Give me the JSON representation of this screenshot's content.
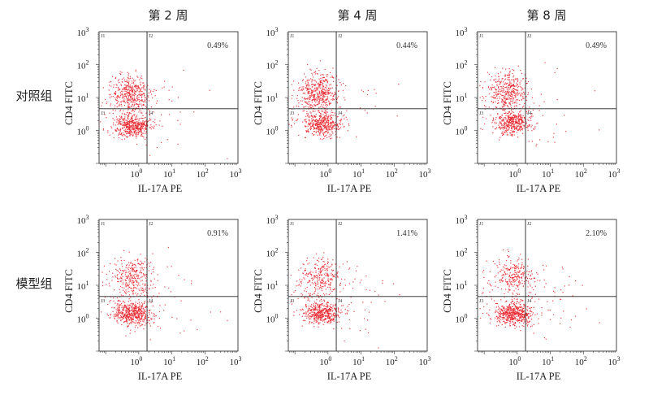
{
  "chart_data": {
    "type": "scatter",
    "xlabel": "IL-17A PE",
    "ylabel": "CD4 FITC",
    "x_scale": "log10",
    "y_scale": "log10",
    "xlim_log10": [
      -1.2,
      3
    ],
    "ylim_log10": [
      -1,
      3
    ],
    "x_ticks_log10": [
      0,
      1,
      2,
      3
    ],
    "y_ticks_log10": [
      0,
      1,
      2,
      3
    ],
    "tick_base": "10",
    "gate_log10": {
      "x": 0.25,
      "y": 0.66
    },
    "quadrant_labels": [
      "J1",
      "J2",
      "J3",
      "J4"
    ],
    "point_color": "#e8222a",
    "columns": [
      "第 2 周",
      "第 4 周",
      "第 8 周"
    ],
    "rows": [
      "对照组",
      "模型组"
    ],
    "panels": [
      {
        "row": 0,
        "col": 0,
        "q2_percent": "0.49%",
        "upper": {
          "cx": -0.25,
          "cy": 1.1,
          "n": 420
        },
        "lower": {
          "cx": -0.2,
          "cy": 0.15,
          "n": 480
        },
        "spread": 25
      },
      {
        "row": 0,
        "col": 1,
        "q2_percent": "0.44%",
        "upper": {
          "cx": -0.3,
          "cy": 1.15,
          "n": 460
        },
        "lower": {
          "cx": -0.2,
          "cy": 0.2,
          "n": 420
        },
        "spread": 22
      },
      {
        "row": 0,
        "col": 2,
        "q2_percent": "0.49%",
        "upper": {
          "cx": -0.3,
          "cy": 1.15,
          "n": 380
        },
        "lower": {
          "cx": -0.15,
          "cy": 0.25,
          "n": 420
        },
        "spread": 25
      },
      {
        "row": 1,
        "col": 0,
        "q2_percent": "0.91%",
        "upper": {
          "cx": -0.2,
          "cy": 1.25,
          "n": 300
        },
        "lower": {
          "cx": -0.2,
          "cy": 0.15,
          "n": 520
        },
        "spread": 40
      },
      {
        "row": 1,
        "col": 1,
        "q2_percent": "1.41%",
        "upper": {
          "cx": -0.25,
          "cy": 1.25,
          "n": 260
        },
        "lower": {
          "cx": -0.2,
          "cy": 0.15,
          "n": 460
        },
        "spread": 50
      },
      {
        "row": 1,
        "col": 2,
        "q2_percent": "2.10%",
        "upper": {
          "cx": -0.1,
          "cy": 1.25,
          "n": 260
        },
        "lower": {
          "cx": -0.1,
          "cy": 0.15,
          "n": 520
        },
        "spread": 55
      }
    ]
  }
}
